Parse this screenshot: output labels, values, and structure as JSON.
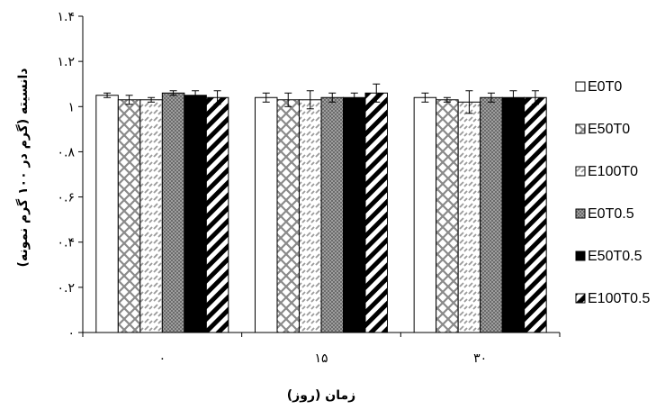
{
  "chart_data": {
    "type": "bar",
    "categories": [
      "۰",
      "۱۵",
      "۳۰"
    ],
    "xlabel": "زمان (روز)",
    "ylabel": "دانسیته (گرم در ۱۰۰ گرم نمونه)",
    "ylim": [
      0,
      1.4
    ],
    "y_ticks": [
      0,
      0.2,
      0.4,
      0.6,
      0.8,
      1,
      1.2,
      1.4
    ],
    "y_tick_labels": [
      "۰",
      "۰.۲",
      "۰.۴",
      "۰.۶",
      "۰.۸",
      "۱",
      "۱.۲",
      "۱.۴"
    ],
    "grid": false,
    "legend_position": "right",
    "series": [
      {
        "name": "E0T0",
        "fill": "white",
        "values": [
          1.05,
          1.04,
          1.04
        ],
        "errors": [
          0.01,
          0.02,
          0.02
        ]
      },
      {
        "name": "E50T0",
        "fill": "crosshatch",
        "values": [
          1.03,
          1.03,
          1.03
        ],
        "errors": [
          0.02,
          0.03,
          0.01
        ]
      },
      {
        "name": "E100T0",
        "fill": "dashes",
        "values": [
          1.03,
          1.03,
          1.02
        ],
        "errors": [
          0.01,
          0.04,
          0.05
        ]
      },
      {
        "name": "E0T0.5",
        "fill": "dots",
        "values": [
          1.06,
          1.04,
          1.04
        ],
        "errors": [
          0.01,
          0.02,
          0.02
        ]
      },
      {
        "name": "E50T0.5",
        "fill": "black",
        "values": [
          1.05,
          1.04,
          1.04
        ],
        "errors": [
          0.02,
          0.02,
          0.03
        ]
      },
      {
        "name": "E100T0.5",
        "fill": "diagonal",
        "values": [
          1.04,
          1.06,
          1.04
        ],
        "errors": [
          0.03,
          0.04,
          0.03
        ]
      }
    ]
  }
}
